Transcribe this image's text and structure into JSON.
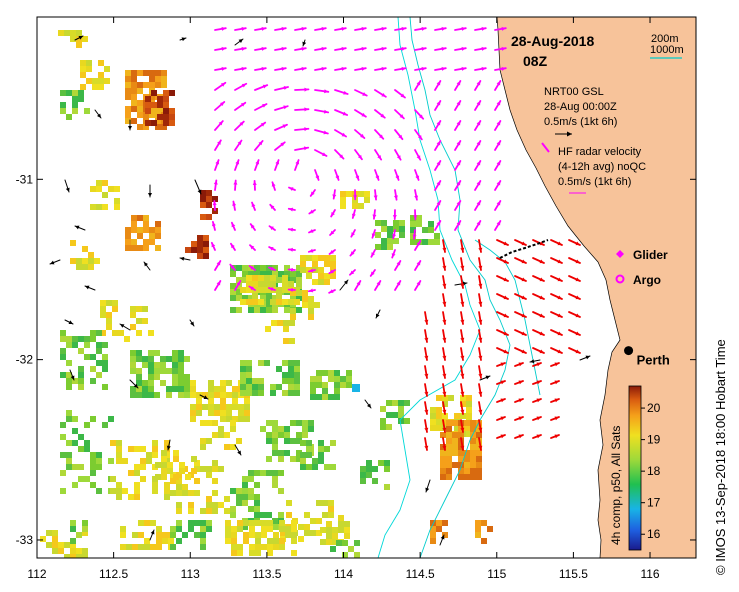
{
  "map": {
    "date": "28-Aug-2018",
    "time": "08Z",
    "scale_lines": [
      "200m",
      "1000m"
    ],
    "colors": {
      "land": "#f7c39a",
      "contour_200": "#00cccc",
      "contour_1000": "#00d8d8",
      "hf_radar": "#ff00ff",
      "glider_argo": "#ff00ff",
      "nrt_vectors": "#ee0000",
      "drift_vectors": "#000000"
    },
    "x_ticks": [
      "112",
      "112.5",
      "113",
      "113.5",
      "114",
      "114.5",
      "115",
      "115.5",
      "116"
    ],
    "y_ticks": [
      "-31",
      "-32",
      "-33"
    ],
    "x_range": [
      112,
      116.3
    ],
    "y_range": [
      -33.1,
      -30.1
    ],
    "legend": {
      "nrt_title": "NRT00 GSL",
      "nrt_date": "28-Aug 00:00Z",
      "nrt_scale": "0.5m/s (1kt 6h)",
      "hf_title": "HF radar velocity",
      "hf_sub": "(4-12h avg) noQC",
      "hf_scale": "0.5m/s (1kt 6h)",
      "glider": "Glider",
      "argo": "Argo"
    },
    "city": {
      "name": "Perth",
      "lon": 115.86,
      "lat": -31.95
    },
    "colorbar": {
      "label": "4h comp, p50, All Sats",
      "ticks": [
        "16",
        "17",
        "18",
        "19",
        "20"
      ],
      "range": [
        15.5,
        20.7
      ]
    },
    "credit": "© IMOS 13-Sep-2018 18:00 Hobart Time"
  }
}
